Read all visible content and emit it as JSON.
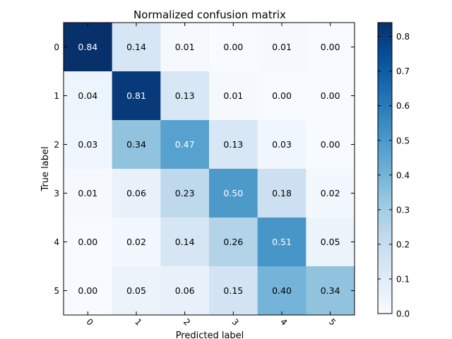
{
  "chart_data": {
    "type": "heatmap",
    "title": "Normalized confusion matrix",
    "xlabel": "Predicted label",
    "ylabel": "True label",
    "x_categories": [
      "0",
      "1",
      "2",
      "3",
      "4",
      "5"
    ],
    "y_categories": [
      "0",
      "1",
      "2",
      "3",
      "4",
      "5"
    ],
    "values": [
      [
        0.84,
        0.14,
        0.01,
        0.0,
        0.01,
        0.0
      ],
      [
        0.04,
        0.81,
        0.13,
        0.01,
        0.0,
        0.0
      ],
      [
        0.03,
        0.34,
        0.47,
        0.13,
        0.03,
        0.0
      ],
      [
        0.01,
        0.06,
        0.23,
        0.5,
        0.18,
        0.02
      ],
      [
        0.0,
        0.02,
        0.14,
        0.26,
        0.51,
        0.05
      ],
      [
        0.0,
        0.05,
        0.06,
        0.15,
        0.4,
        0.34
      ]
    ],
    "value_labels": [
      [
        "0.84",
        "0.14",
        "0.01",
        "0.00",
        "0.01",
        "0.00"
      ],
      [
        "0.04",
        "0.81",
        "0.13",
        "0.01",
        "0.00",
        "0.00"
      ],
      [
        "0.03",
        "0.34",
        "0.47",
        "0.13",
        "0.03",
        "0.00"
      ],
      [
        "0.01",
        "0.06",
        "0.23",
        "0.50",
        "0.18",
        "0.02"
      ],
      [
        "0.00",
        "0.02",
        "0.14",
        "0.26",
        "0.51",
        "0.05"
      ],
      [
        "0.00",
        "0.05",
        "0.06",
        "0.15",
        "0.40",
        "0.34"
      ]
    ],
    "colormap": "Blues",
    "colormap_stops": [
      "#f7fbff",
      "#deebf7",
      "#c6dbef",
      "#9ecae1",
      "#6baed6",
      "#4292c6",
      "#2171b5",
      "#08519c",
      "#08306b"
    ],
    "vmin": 0.0,
    "vmax": 0.84,
    "colorbar_ticks": [
      0.0,
      0.1,
      0.2,
      0.3,
      0.4,
      0.5,
      0.6,
      0.7,
      0.8
    ],
    "colorbar_tick_labels": [
      "0.0",
      "0.1",
      "0.2",
      "0.3",
      "0.4",
      "0.5",
      "0.6",
      "0.7",
      "0.8"
    ],
    "text_threshold": 0.42,
    "text_color_dark": "#000000",
    "text_color_light": "#ffffff"
  }
}
